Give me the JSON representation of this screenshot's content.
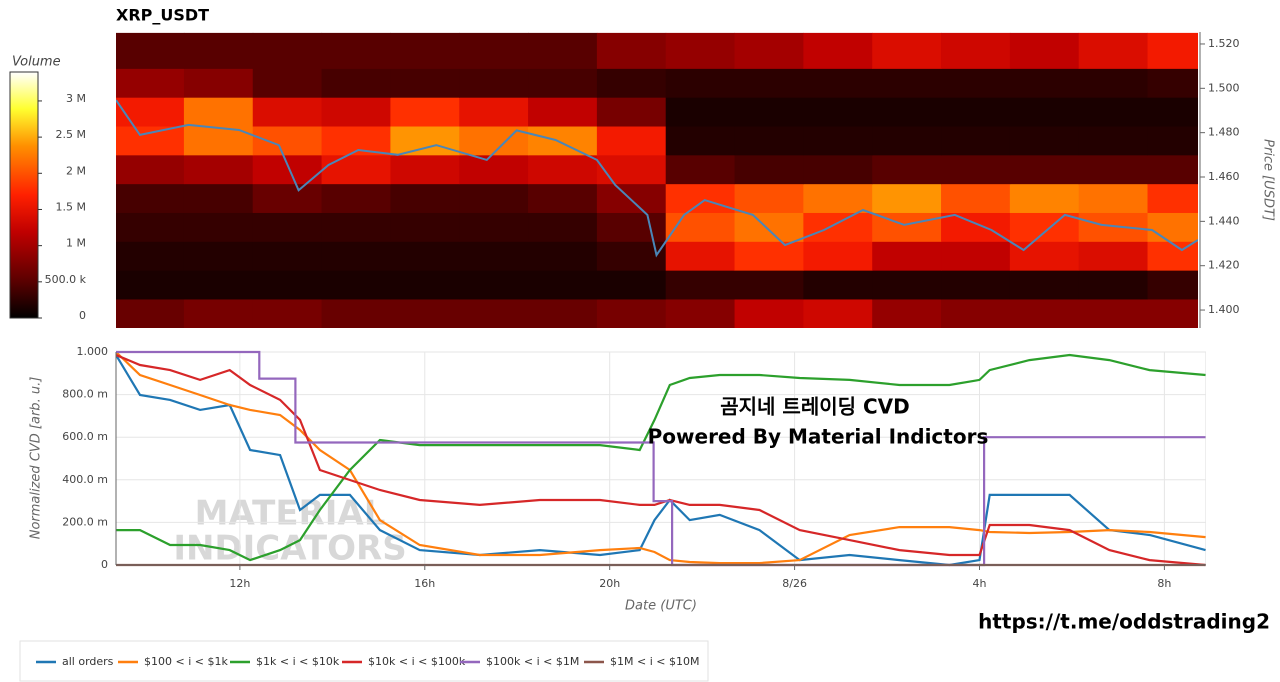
{
  "chart_data": [
    {
      "type": "heatmap",
      "title": "XRP_USDT",
      "y_label": "Price [USDT]",
      "colorbar_label": "Volume",
      "xlim": [
        9.32,
        32.9
      ],
      "ylim": [
        1.3919,
        1.5254
      ],
      "yticks": [
        {
          "value": 1.4,
          "label": "1.400"
        },
        {
          "value": 1.42,
          "label": "1.420"
        },
        {
          "value": 1.44,
          "label": "1.440"
        },
        {
          "value": 1.46,
          "label": "1.460"
        },
        {
          "value": 1.48,
          "label": "1.480"
        },
        {
          "value": 1.5,
          "label": "1.500"
        },
        {
          "value": 1.52,
          "label": "1.520"
        }
      ],
      "zlim": [
        0,
        3400000
      ],
      "zticks": [
        0,
        {
          "value": 500000,
          "label": "500.0 k"
        },
        {
          "value": 1000000,
          "label": "1 M"
        },
        {
          "value": 1500000,
          "label": "1.5 M"
        },
        {
          "value": 2000000,
          "label": "2 M"
        },
        {
          "value": 2500000,
          "label": "2.5 M"
        },
        {
          "value": 3000000,
          "label": "3 M"
        }
      ],
      "x_bins": [
        9.32,
        10.8,
        12.3,
        13.8,
        15.3,
        16.8,
        18.3,
        19.8,
        21.3,
        22.8,
        24.3,
        25.8,
        27.3,
        28.8,
        30.3,
        31.8,
        32.9
      ],
      "y_bins": [
        1.392,
        1.405,
        1.418,
        1.431,
        1.444,
        1.457,
        1.47,
        1.483,
        1.496,
        1.509,
        1.525
      ],
      "values": [
        [
          600000,
          700000,
          700000,
          600000,
          600000,
          600000,
          600000,
          700000,
          800000,
          1200000,
          1300000,
          900000,
          800000,
          800000,
          800000,
          800000
        ],
        [
          150000,
          150000,
          150000,
          150000,
          150000,
          150000,
          150000,
          150000,
          300000,
          300000,
          200000,
          200000,
          200000,
          200000,
          200000,
          300000
        ],
        [
          200000,
          200000,
          200000,
          200000,
          200000,
          200000,
          200000,
          300000,
          1500000,
          1800000,
          1600000,
          1200000,
          1200000,
          1500000,
          1400000,
          1800000
        ],
        [
          300000,
          300000,
          300000,
          300000,
          300000,
          300000,
          300000,
          500000,
          2000000,
          2200000,
          1800000,
          2000000,
          1600000,
          1800000,
          2000000,
          2200000
        ],
        [
          400000,
          400000,
          600000,
          500000,
          400000,
          400000,
          500000,
          800000,
          1800000,
          2000000,
          2200000,
          2400000,
          2000000,
          2300000,
          2200000,
          1800000
        ],
        [
          900000,
          1000000,
          1200000,
          1500000,
          1300000,
          1200000,
          1300000,
          1400000,
          500000,
          400000,
          400000,
          500000,
          500000,
          500000,
          500000,
          500000
        ],
        [
          1800000,
          2200000,
          2000000,
          1800000,
          2400000,
          2200000,
          2300000,
          1600000,
          200000,
          200000,
          200000,
          200000,
          200000,
          200000,
          200000,
          200000
        ],
        [
          1600000,
          2200000,
          1400000,
          1300000,
          1800000,
          1500000,
          1200000,
          700000,
          150000,
          150000,
          150000,
          150000,
          150000,
          150000,
          150000,
          150000
        ],
        [
          900000,
          800000,
          500000,
          400000,
          400000,
          400000,
          400000,
          300000,
          250000,
          250000,
          250000,
          250000,
          250000,
          250000,
          250000,
          300000
        ],
        [
          500000,
          500000,
          500000,
          500000,
          500000,
          500000,
          500000,
          800000,
          900000,
          1000000,
          1200000,
          1400000,
          1300000,
          1200000,
          1400000,
          1600000
        ]
      ],
      "line": {
        "color": "#4a86b8",
        "x": [
          9.32,
          9.84,
          10.9,
          12,
          12.87,
          13.3,
          13.95,
          14.6,
          15.46,
          16.3,
          17.4,
          18.05,
          18.9,
          19.8,
          20.2,
          20.9,
          21.1,
          21.7,
          22.15,
          23.2,
          23.9,
          24.75,
          25.6,
          26.5,
          27.6,
          28.4,
          29.1,
          30.0,
          30.8,
          31.9,
          32.55,
          32.9
        ],
        "values": [
          1.4947,
          1.479,
          1.4835,
          1.4812,
          1.4744,
          1.454,
          1.4654,
          1.4722,
          1.47,
          1.4744,
          1.4677,
          1.481,
          1.4767,
          1.4677,
          1.4564,
          1.4429,
          1.4248,
          1.4429,
          1.4496,
          1.4429,
          1.4293,
          1.4361,
          1.4451,
          1.4384,
          1.4429,
          1.4361,
          1.4271,
          1.4429,
          1.4384,
          1.4361,
          1.4271,
          1.4316
        ]
      }
    },
    {
      "type": "line",
      "x_label": "Date (UTC)",
      "y_label": "Normalized CVD [arb. u.]",
      "xlim": [
        9.32,
        32.9
      ],
      "ylim": [
        0,
        1
      ],
      "grid": true,
      "legend": "bottom",
      "xticks": [
        {
          "value": 12,
          "label": "12h"
        },
        {
          "value": 16,
          "label": "16h"
        },
        {
          "value": 20,
          "label": "20h"
        },
        {
          "value": 24,
          "label": "8/26"
        },
        {
          "value": 28,
          "label": "4h"
        },
        {
          "value": 32,
          "label": "8h"
        }
      ],
      "yticks": [
        0,
        {
          "value": 0.2,
          "label": "200.0 m"
        },
        {
          "value": 0.4,
          "label": "400.0 m"
        },
        {
          "value": 0.6,
          "label": "600.0 m"
        },
        {
          "value": 0.8,
          "label": "800.0 m"
        },
        {
          "value": 1,
          "label": "1.000"
        }
      ],
      "x": [
        9.32,
        9.84,
        10.49,
        11.14,
        11.78,
        12.22,
        12.87,
        13.3,
        13.73,
        14.38,
        15.03,
        15.89,
        17.19,
        18.49,
        19.79,
        20.65,
        20.97,
        21.3,
        21.73,
        22.38,
        23.24,
        24.11,
        25.19,
        26.27,
        27.35,
        28.0,
        28.22,
        29.08,
        29.95,
        30.81,
        31.68,
        32.89
      ],
      "series": [
        {
          "name": "all orders",
          "color": "#1f77b4",
          "values": [
            0.986,
            0.798,
            0.775,
            0.728,
            0.751,
            0.54,
            0.516,
            0.258,
            0.329,
            0.329,
            0.164,
            0.07,
            0.047,
            0.07,
            0.047,
            0.07,
            0.211,
            0.305,
            0.211,
            0.235,
            0.164,
            0.023,
            0.047,
            0.023,
            0,
            0.023,
            0.329,
            0.329,
            0.329,
            0.164,
            0.141,
            0.07
          ]
        },
        {
          "name": "$100 < i < $1k",
          "color": "#ff7f0e",
          "values": [
            1.0,
            0.892,
            0.845,
            0.798,
            0.751,
            0.728,
            0.704,
            0.634,
            0.54,
            0.446,
            0.211,
            0.094,
            0.047,
            0.047,
            0.07,
            0.08,
            0.061,
            0.023,
            0.014,
            0.009,
            0.009,
            0.023,
            0.141,
            0.178,
            0.178,
            0.164,
            0.155,
            0.15,
            0.155,
            0.164,
            0.155,
            0.131
          ]
        },
        {
          "name": "$1k < i < $10k",
          "color": "#2ca02c",
          "values": [
            0.164,
            0.164,
            0.094,
            0.094,
            0.07,
            0.023,
            0.07,
            0.117,
            0.258,
            0.446,
            0.587,
            0.563,
            0.563,
            0.563,
            0.563,
            0.54,
            0.681,
            0.845,
            0.878,
            0.892,
            0.892,
            0.878,
            0.869,
            0.845,
            0.845,
            0.869,
            0.915,
            0.962,
            0.986,
            0.962,
            0.915,
            0.892
          ]
        },
        {
          "name": "$10k < i < $100k",
          "color": "#d62728",
          "values": [
            0.986,
            0.939,
            0.915,
            0.869,
            0.915,
            0.845,
            0.775,
            0.681,
            0.446,
            0.399,
            0.352,
            0.305,
            0.282,
            0.305,
            0.305,
            0.282,
            0.282,
            0.305,
            0.282,
            0.282,
            0.258,
            0.164,
            0.117,
            0.07,
            0.047,
            0.047,
            0.188,
            0.188,
            0.164,
            0.07,
            0.023,
            0
          ]
        },
        {
          "name": "$100k < i < $1M",
          "color": "#9467bd",
          "x": [
            9.32,
            12.42,
            12.42,
            13.2,
            13.2,
            20.95,
            20.95,
            21.35,
            21.35,
            28.1,
            28.1,
            32.89
          ],
          "values": [
            1,
            1,
            0.875,
            0.875,
            0.575,
            0.575,
            0.3,
            0.3,
            0,
            0,
            0.6,
            0.6
          ]
        },
        {
          "name": "$1M < i < $10M",
          "color": "#8c564b",
          "x": [
            9.32,
            32.89
          ],
          "values": [
            0,
            0
          ]
        }
      ]
    }
  ],
  "watermark": [
    "MATERIAL",
    "INDICATORS"
  ],
  "overlay_text": [
    "곰지네 트레이딩 CVD",
    "Powered By Material Indictors"
  ],
  "link": "https://t.me/oddstrading2"
}
